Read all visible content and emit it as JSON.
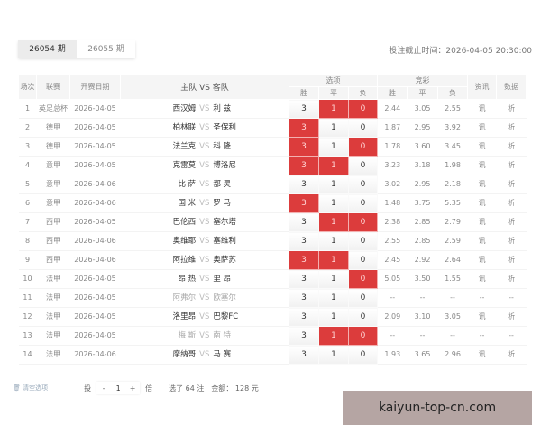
{
  "tabs": [
    {
      "label": "26054 期",
      "active": true
    },
    {
      "label": "26055 期",
      "active": false
    }
  ],
  "deadline": "投注截止时间：2026-04-05 20:30:00",
  "headers": {
    "no": "场次",
    "league": "联赛",
    "date": "开赛日期",
    "match": "主队 VS 客队",
    "options": "选项",
    "jc": "竞彩",
    "win": "胜",
    "draw": "平",
    "lose": "负",
    "info": "资讯",
    "data": "数据"
  },
  "option_labels": [
    "3",
    "1",
    "0"
  ],
  "vs": "VS",
  "rows": [
    {
      "no": "1",
      "league": "英足总杯",
      "date": "2026-04-05",
      "home": "西汉姆",
      "away": "利 兹",
      "sel": [
        false,
        true,
        true
      ],
      "odds": [
        "2.44",
        "3.05",
        "2.55"
      ],
      "info": "讯",
      "data": "析"
    },
    {
      "no": "2",
      "league": "德甲",
      "date": "2026-04-05",
      "home": "柏林联",
      "away": "圣保利",
      "sel": [
        true,
        false,
        false
      ],
      "odds": [
        "1.87",
        "2.95",
        "3.92"
      ],
      "info": "讯",
      "data": "析"
    },
    {
      "no": "3",
      "league": "德甲",
      "date": "2026-04-05",
      "home": "法兰克",
      "away": "科 隆",
      "sel": [
        true,
        false,
        true
      ],
      "odds": [
        "1.78",
        "3.60",
        "3.45"
      ],
      "info": "讯",
      "data": "析"
    },
    {
      "no": "4",
      "league": "意甲",
      "date": "2026-04-05",
      "home": "克雷莫",
      "away": "博洛尼",
      "sel": [
        true,
        true,
        false
      ],
      "odds": [
        "3.23",
        "3.18",
        "1.98"
      ],
      "info": "讯",
      "data": "析"
    },
    {
      "no": "5",
      "league": "意甲",
      "date": "2026-04-06",
      "home": "比 萨",
      "away": "都 灵",
      "sel": [
        false,
        false,
        false
      ],
      "odds": [
        "3.02",
        "2.95",
        "2.18"
      ],
      "info": "讯",
      "data": "析"
    },
    {
      "no": "6",
      "league": "意甲",
      "date": "2026-04-06",
      "home": "国 米",
      "away": "罗 马",
      "sel": [
        true,
        false,
        false
      ],
      "odds": [
        "1.48",
        "3.75",
        "5.35"
      ],
      "info": "讯",
      "data": "析"
    },
    {
      "no": "7",
      "league": "西甲",
      "date": "2026-04-05",
      "home": "巴伦西",
      "away": "塞尔塔",
      "sel": [
        false,
        true,
        true
      ],
      "odds": [
        "2.38",
        "2.85",
        "2.79"
      ],
      "info": "讯",
      "data": "析"
    },
    {
      "no": "8",
      "league": "西甲",
      "date": "2026-04-06",
      "home": "奥维耶",
      "away": "塞维利",
      "sel": [
        false,
        false,
        false
      ],
      "odds": [
        "2.55",
        "2.85",
        "2.59"
      ],
      "info": "讯",
      "data": "析"
    },
    {
      "no": "9",
      "league": "西甲",
      "date": "2026-04-06",
      "home": "阿拉维",
      "away": "奥萨苏",
      "sel": [
        true,
        true,
        false
      ],
      "odds": [
        "2.45",
        "2.92",
        "2.64"
      ],
      "info": "讯",
      "data": "析"
    },
    {
      "no": "10",
      "league": "法甲",
      "date": "2026-04-05",
      "home": "昂 热",
      "away": "里 昂",
      "sel": [
        false,
        false,
        true
      ],
      "odds": [
        "5.05",
        "3.50",
        "1.55"
      ],
      "info": "讯",
      "data": "析"
    },
    {
      "no": "11",
      "league": "法甲",
      "date": "2026-04-05",
      "home": "阿弗尔",
      "away": "欧塞尔",
      "dim": true,
      "sel": [
        false,
        false,
        false
      ],
      "odds": [
        "--",
        "--",
        "--"
      ],
      "info": "--",
      "data": "--"
    },
    {
      "no": "12",
      "league": "法甲",
      "date": "2026-04-05",
      "home": "洛里昂",
      "away": "巴黎FC",
      "sel": [
        false,
        false,
        false
      ],
      "odds": [
        "2.09",
        "3.10",
        "3.05"
      ],
      "info": "讯",
      "data": "析"
    },
    {
      "no": "13",
      "league": "法甲",
      "date": "2026-04-05",
      "home": "梅 斯",
      "away": "南 特",
      "dim": true,
      "sel": [
        false,
        true,
        true
      ],
      "odds": [
        "--",
        "--",
        "--"
      ],
      "info": "--",
      "data": "--"
    },
    {
      "no": "14",
      "league": "法甲",
      "date": "2026-04-06",
      "home": "摩纳哥",
      "away": "马 赛",
      "sel": [
        false,
        false,
        false
      ],
      "odds": [
        "1.93",
        "3.65",
        "2.96"
      ],
      "info": "讯",
      "data": "析"
    }
  ],
  "footer": {
    "clear": "清空选项",
    "bet_prefix": "投",
    "minus": "-",
    "multiplier": "1",
    "plus": "+",
    "bet_suffix": "倍",
    "summary": "选了 64 注",
    "amount": "金额： 128 元"
  },
  "watermark": "kaiyun-top-cn.com",
  "colors": {
    "selected": "#dc3c3c"
  }
}
